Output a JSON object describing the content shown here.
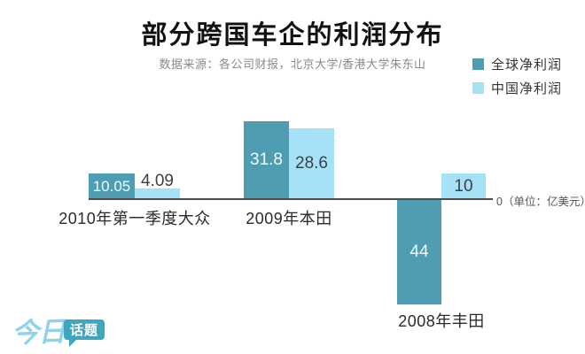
{
  "title": "部分跨国车企的利润分布",
  "subtitle": "数据来源：各公司财报，北京大学/香港大学朱东山",
  "legend": [
    {
      "label": "全球净利润",
      "color": "#4f9db3"
    },
    {
      "label": "中国净利润",
      "color": "#a5e2f8"
    }
  ],
  "axis_note": "0（单位：亿美元）",
  "logo": {
    "text_left": "今日",
    "text_bubble": "话题",
    "color_left": "#8ed2ed",
    "color_bubble": "#3fa7bd"
  },
  "chart_data": {
    "type": "bar",
    "title": "部分跨国车企的利润分布",
    "categories": [
      "2010年第一季度大众",
      "2009年本田",
      "2008年丰田"
    ],
    "series": [
      {
        "name": "全球净利润",
        "color": "#4f9db3",
        "values": [
          10.05,
          31.8,
          -44
        ]
      },
      {
        "name": "中国净利润",
        "color": "#a5e2f8",
        "values": [
          4.09,
          28.6,
          10
        ]
      }
    ],
    "bar_labels": [
      "10.05",
      "4.09",
      "31.8",
      "28.6",
      "44",
      "10"
    ],
    "unit": "亿美元",
    "baseline": 0,
    "ylim": [
      -44,
      31.8
    ],
    "grid": false,
    "legend_position": "top-right"
  }
}
